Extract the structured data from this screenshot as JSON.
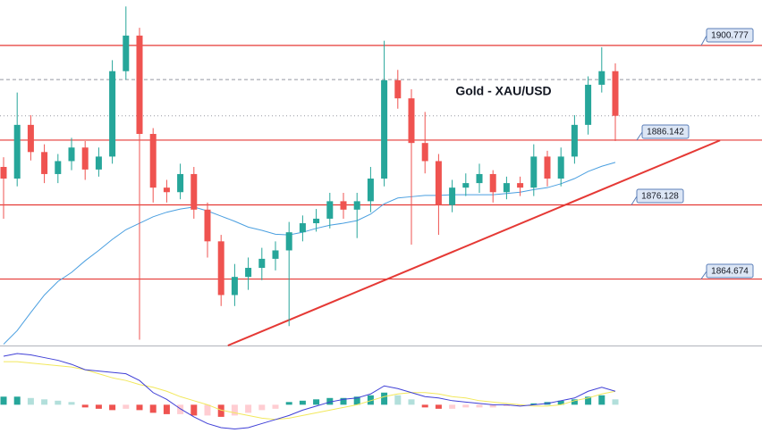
{
  "chart_data": {
    "type": "candlestick",
    "title": "Gold - XAU/USD",
    "up_color": "#26a69a",
    "down_color": "#ef5350",
    "ylim": [
      1854.4,
      1907.8
    ],
    "open": [
      1882.0,
      1880.2,
      1888.5,
      1884.3,
      1880.9,
      1882.9,
      1885.0,
      1881.6,
      1883.6,
      1896.8,
      1902.3,
      1887.1,
      1878.8,
      1878.1,
      1880.9,
      1875.4,
      1870.5,
      1862.2,
      1865.0,
      1866.4,
      1867.8,
      1869.1,
      1871.9,
      1873.3,
      1874.0,
      1876.7,
      1875.4,
      1876.7,
      1880.2,
      1895.4,
      1892.6,
      1885.7,
      1882.9,
      1876.1,
      1878.8,
      1879.5,
      1880.9,
      1878.1,
      1879.5,
      1878.8,
      1883.6,
      1880.2,
      1883.6,
      1888.5,
      1894.7,
      1896.8
    ],
    "high": [
      1883.5,
      1893.5,
      1890.0,
      1885.5,
      1884.0,
      1886.5,
      1886.0,
      1885.0,
      1898.5,
      1906.8,
      1903.5,
      1888.0,
      1880.0,
      1882.5,
      1882.0,
      1876.5,
      1871.5,
      1867.0,
      1868.0,
      1869.5,
      1870.5,
      1873.5,
      1874.5,
      1875.5,
      1878.0,
      1878.0,
      1878.0,
      1882.0,
      1901.5,
      1897.0,
      1894.0,
      1890.5,
      1884.0,
      1880.0,
      1881.0,
      1882.5,
      1881.5,
      1880.5,
      1880.5,
      1885.5,
      1884.5,
      1885.0,
      1890.0,
      1896.0,
      1900.5,
      1898.0
    ],
    "low": [
      1874.0,
      1879.0,
      1883.0,
      1879.5,
      1879.5,
      1881.5,
      1880.0,
      1880.5,
      1882.5,
      1895.5,
      1855.3,
      1876.5,
      1876.5,
      1877.0,
      1874.0,
      1868.0,
      1860.5,
      1860.5,
      1863.0,
      1864.5,
      1866.0,
      1857.4,
      1870.5,
      1872.0,
      1872.5,
      1874.0,
      1871.0,
      1875.0,
      1879.0,
      1891.0,
      1870.0,
      1881.0,
      1871.5,
      1875.0,
      1877.5,
      1878.0,
      1876.5,
      1877.0,
      1877.5,
      1877.5,
      1879.0,
      1879.0,
      1882.5,
      1887.0,
      1893.5,
      1886.0
    ],
    "close": [
      1880.2,
      1888.5,
      1884.3,
      1880.9,
      1882.9,
      1885.0,
      1881.6,
      1883.6,
      1896.8,
      1902.3,
      1887.1,
      1878.8,
      1878.1,
      1880.9,
      1875.4,
      1870.5,
      1862.2,
      1865.0,
      1866.4,
      1867.8,
      1869.1,
      1871.9,
      1873.3,
      1874.0,
      1876.7,
      1875.4,
      1876.7,
      1880.2,
      1895.4,
      1892.6,
      1885.7,
      1882.9,
      1876.1,
      1878.8,
      1879.5,
      1880.9,
      1878.1,
      1879.5,
      1878.8,
      1883.6,
      1880.2,
      1883.6,
      1888.5,
      1894.7,
      1896.8,
      1889.9
    ],
    "moving_average": {
      "color": "#4a9fe0",
      "values": [
        1854.6,
        1856.7,
        1859.5,
        1862.2,
        1864.3,
        1865.7,
        1867.5,
        1869.1,
        1870.8,
        1872.3,
        1873.3,
        1874.3,
        1875.0,
        1875.5,
        1875.8,
        1875.2,
        1874.4,
        1873.6,
        1872.7,
        1872.2,
        1871.6,
        1871.5,
        1871.9,
        1872.5,
        1873.0,
        1873.3,
        1873.7,
        1874.7,
        1876.3,
        1877.2,
        1877.4,
        1877.6,
        1877.6,
        1877.7,
        1877.7,
        1877.7,
        1877.7,
        1877.9,
        1878.1,
        1878.5,
        1878.8,
        1879.4,
        1880.2,
        1881.3,
        1882.1,
        1882.7
      ]
    },
    "levels": [
      {
        "value": 1900.777,
        "label": "1900.777"
      },
      {
        "value": 1886.142,
        "label": "1886.142"
      },
      {
        "value": 1876.128,
        "label": "1876.128"
      },
      {
        "value": 1864.674,
        "label": "1864.674"
      }
    ],
    "level_color": "#e53935",
    "dashed_level": 1895.5,
    "trendline": {
      "x": [
        16.5,
        52.7
      ],
      "values": [
        1854.4,
        1886.1
      ]
    },
    "macd": {
      "ylim": [
        -2.1,
        4.2
      ],
      "macd_color": "#3f3fd6",
      "signal_color": "#f2e85c",
      "macd": [
        3.6,
        3.8,
        3.7,
        3.5,
        3.3,
        3.0,
        2.6,
        2.5,
        2.4,
        2.3,
        1.8,
        0.9,
        0.4,
        -0.3,
        -0.9,
        -1.4,
        -1.7,
        -1.8,
        -1.7,
        -1.4,
        -1.1,
        -0.8,
        -0.4,
        -0.1,
        0.2,
        0.4,
        0.5,
        0.8,
        1.4,
        1.2,
        0.9,
        0.6,
        0.5,
        0.3,
        0.2,
        0.1,
        0,
        0,
        -0.1,
        0,
        0.1,
        0.3,
        0.5,
        1.0,
        1.3,
        1.0
      ],
      "signal": [
        3.2,
        3.2,
        3.1,
        3.0,
        2.9,
        2.8,
        2.6,
        2.3,
        2.0,
        1.8,
        1.5,
        1.3,
        1.0,
        0.6,
        0.3,
        0,
        -0.4,
        -0.6,
        -0.8,
        -1.0,
        -1.1,
        -1.0,
        -0.8,
        -0.6,
        -0.4,
        -0.2,
        0,
        0.3,
        0.6,
        0.8,
        0.9,
        0.9,
        0.8,
        0.6,
        0.5,
        0.3,
        0.2,
        0.1,
        0,
        -0.1,
        -0.1,
        0,
        0.3,
        0.5,
        0.8,
        1.0
      ],
      "histogram": [
        0.6,
        0.6,
        0.5,
        0.4,
        0.3,
        0.2,
        -0.2,
        -0.3,
        -0.4,
        -0.3,
        -0.4,
        -0.6,
        -0.7,
        -0.7,
        -0.8,
        -0.8,
        -0.9,
        -0.8,
        -0.6,
        -0.4,
        -0.3,
        0.2,
        0.3,
        0.4,
        0.5,
        0.5,
        0.6,
        0.7,
        0.9,
        0.7,
        0.4,
        -0.2,
        -0.3,
        -0.3,
        -0.2,
        -0.2,
        -0.2,
        -0.1,
        -0.1,
        0.1,
        0.2,
        0.3,
        0.4,
        0.6,
        0.7,
        0.4
      ]
    }
  }
}
